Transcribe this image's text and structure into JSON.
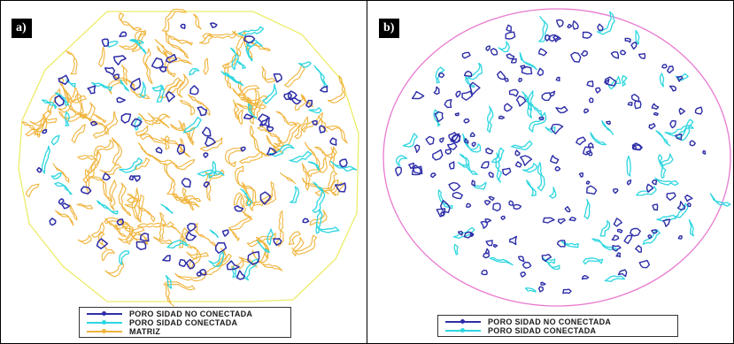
{
  "colors": {
    "no_conectada": "#2e2ea8",
    "conectada": "#2ed6e0",
    "matriz": "#f0b43c",
    "boundary_a": "#ecec6a",
    "boundary_b": "#e87ad0"
  },
  "panel_a": {
    "label": "a)",
    "legend": [
      {
        "text": "PORO SIDAD NO CONECTADA",
        "color_key": "no_conectada"
      },
      {
        "text": "PORO SIDAD  CONECTADA",
        "color_key": "conectada"
      },
      {
        "text": "MATRIZ",
        "color_key": "matriz"
      }
    ]
  },
  "panel_b": {
    "label": "b)",
    "legend": [
      {
        "text": "PORO SIDAD NO CONECTADA",
        "color_key": "no_conectada"
      },
      {
        "text": "PORO SIDAD CONECTADA",
        "color_key": "conectada"
      }
    ]
  }
}
